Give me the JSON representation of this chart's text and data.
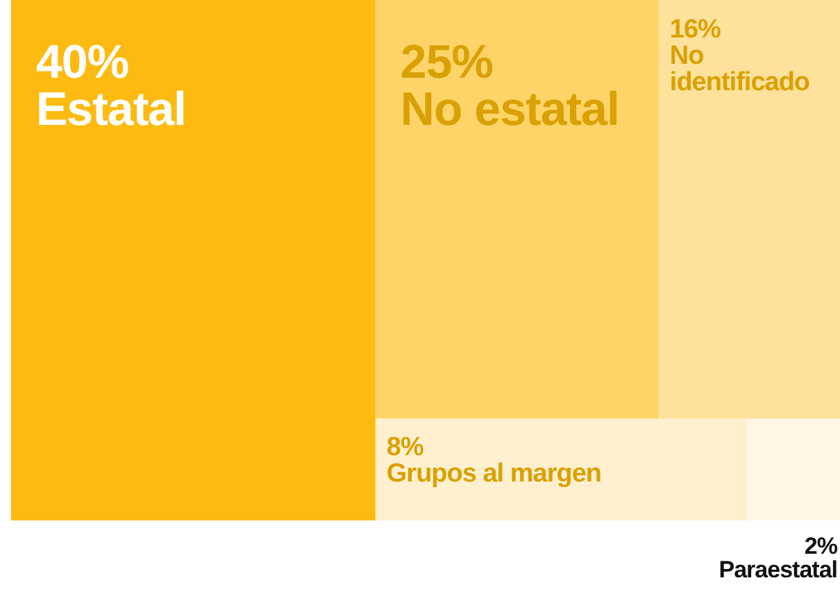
{
  "chart_data": {
    "type": "other",
    "categories": [
      "Estatal",
      "No estatal",
      "No identificado",
      "Grupos al margen",
      "Paraestatal"
    ],
    "values": [
      40,
      25,
      16,
      8,
      2
    ],
    "value_labels": [
      "40%",
      "25%",
      "16%",
      "8%",
      "2%"
    ],
    "colors": [
      "#fdbb12",
      "#fed468",
      "#fee19a",
      "#fef0cf",
      "#fff6e6"
    ]
  }
}
